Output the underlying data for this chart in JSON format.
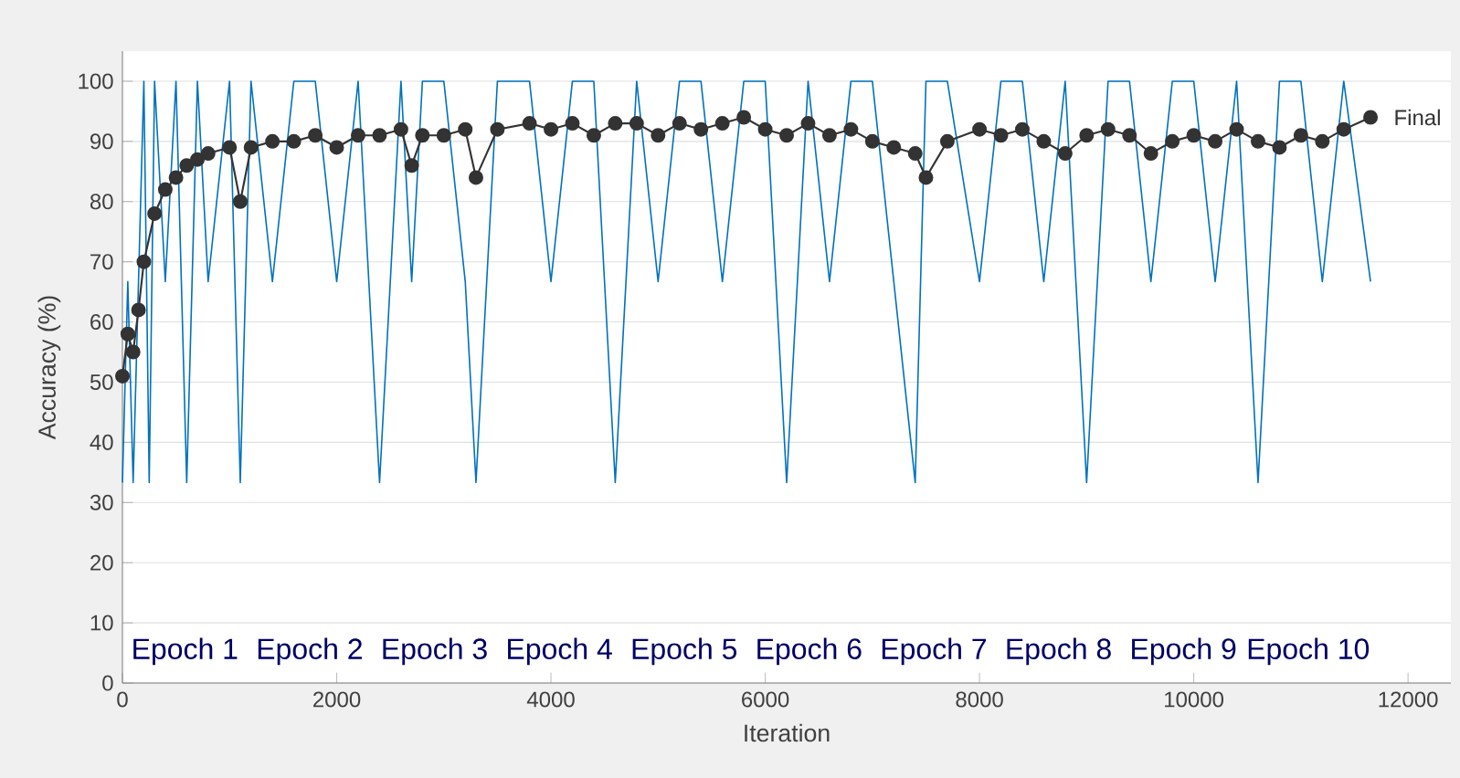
{
  "chart_data": {
    "type": "line",
    "xlabel": "Iteration",
    "ylabel": "Accuracy (%)",
    "xlim": [
      0,
      12400
    ],
    "ylim": [
      0,
      105
    ],
    "xticks": [
      0,
      2000,
      4000,
      6000,
      8000,
      10000,
      12000
    ],
    "yticks": [
      0,
      10,
      20,
      30,
      40,
      50,
      60,
      70,
      80,
      90,
      100
    ],
    "grid": "y",
    "series": [
      {
        "color": "#0072bd",
        "marker": "none",
        "x": [
          0,
          50,
          100,
          150,
          200,
          250,
          300,
          400,
          500,
          600,
          700,
          800,
          1000,
          1100,
          1200,
          1400,
          1600,
          1800,
          2000,
          2200,
          2400,
          2600,
          2700,
          2800,
          3000,
          3200,
          3300,
          3500,
          3800,
          4000,
          4200,
          4400,
          4600,
          4800,
          5000,
          5200,
          5400,
          5600,
          5800,
          6000,
          6200,
          6400,
          6600,
          6800,
          7000,
          7200,
          7400,
          7500,
          7700,
          8000,
          8200,
          8400,
          8600,
          8800,
          9000,
          9200,
          9400,
          9600,
          9800,
          10000,
          10200,
          10400,
          10600,
          10800,
          11000,
          11200,
          11400,
          11650
        ],
        "values": [
          33.3,
          66.7,
          33.3,
          66.7,
          100,
          33.3,
          100,
          66.7,
          100,
          33.3,
          100,
          66.7,
          100,
          33.3,
          100,
          66.7,
          100,
          100,
          66.7,
          100,
          33.3,
          100,
          66.7,
          100,
          100,
          66.7,
          33.3,
          100,
          100,
          66.7,
          100,
          100,
          33.3,
          100,
          66.7,
          100,
          100,
          66.7,
          100,
          100,
          33.3,
          100,
          66.7,
          100,
          100,
          66.7,
          33.3,
          100,
          100,
          66.7,
          100,
          100,
          66.7,
          100,
          33.3,
          100,
          100,
          66.7,
          100,
          100,
          66.7,
          100,
          33.3,
          100,
          100,
          66.7,
          100,
          66.7
        ]
      },
      {
        "color": "#333333",
        "marker": "circle",
        "x": [
          0,
          50,
          100,
          150,
          200,
          300,
          400,
          500,
          600,
          700,
          800,
          1000,
          1100,
          1200,
          1400,
          1600,
          1800,
          2000,
          2200,
          2400,
          2600,
          2700,
          2800,
          3000,
          3200,
          3300,
          3500,
          3800,
          4000,
          4200,
          4400,
          4600,
          4800,
          5000,
          5200,
          5400,
          5600,
          5800,
          6000,
          6200,
          6400,
          6600,
          6800,
          7000,
          7200,
          7400,
          7500,
          7700,
          8000,
          8200,
          8400,
          8600,
          8800,
          9000,
          9200,
          9400,
          9600,
          9800,
          10000,
          10200,
          10400,
          10600,
          10800,
          11000,
          11200,
          11400,
          11650
        ],
        "values": [
          51,
          58,
          55,
          62,
          70,
          78,
          82,
          84,
          86,
          87,
          88,
          89,
          80,
          89,
          90,
          90,
          91,
          89,
          91,
          91,
          92,
          86,
          91,
          91,
          92,
          84,
          92,
          93,
          92,
          93,
          91,
          93,
          93,
          91,
          93,
          92,
          93,
          94,
          92,
          91,
          93,
          91,
          92,
          90,
          89,
          88,
          84,
          90,
          92,
          91,
          92,
          90,
          88,
          91,
          92,
          91,
          88,
          90,
          91,
          90,
          92,
          90,
          89,
          91,
          90,
          92,
          94
        ]
      }
    ],
    "annotations": [
      "Epoch 1",
      "Epoch 2",
      "Epoch 3",
      "Epoch 4",
      "Epoch 5",
      "Epoch 6",
      "Epoch 7",
      "Epoch 8",
      "Epoch 9",
      "Epoch 10",
      "Final"
    ]
  }
}
